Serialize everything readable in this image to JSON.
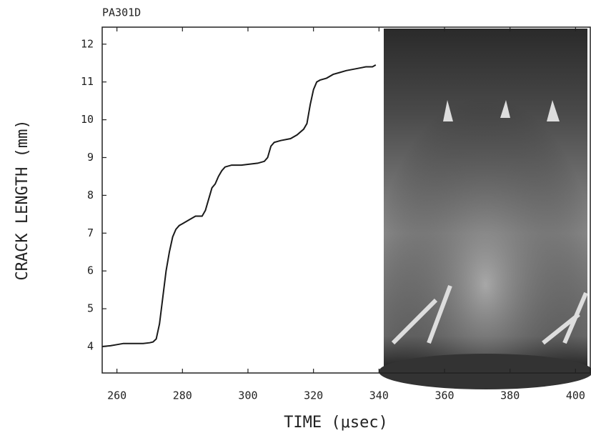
{
  "chart_data": {
    "type": "line",
    "title": "PA301D",
    "xlabel": "TIME (μsec)",
    "ylabel": "CRACK LENGTH (mm)",
    "x": [
      255.5,
      258,
      260,
      262,
      265,
      268,
      270,
      271,
      272,
      273,
      274,
      275,
      276,
      277,
      278,
      279,
      280,
      282,
      284,
      286,
      287,
      288,
      289,
      290,
      291,
      292,
      293,
      295,
      298,
      300,
      303,
      305,
      306,
      307,
      308,
      310,
      313,
      315,
      317,
      318,
      319,
      320,
      321,
      322,
      324,
      326,
      328,
      330,
      333,
      336,
      338,
      339
    ],
    "values": [
      4.0,
      4.02,
      4.05,
      4.08,
      4.08,
      4.08,
      4.1,
      4.12,
      4.2,
      4.6,
      5.3,
      6.0,
      6.5,
      6.9,
      7.1,
      7.2,
      7.25,
      7.35,
      7.45,
      7.45,
      7.6,
      7.9,
      8.2,
      8.3,
      8.5,
      8.65,
      8.75,
      8.8,
      8.8,
      8.82,
      8.85,
      8.9,
      9.0,
      9.3,
      9.4,
      9.45,
      9.5,
      9.6,
      9.75,
      9.9,
      10.4,
      10.8,
      11.0,
      11.05,
      11.1,
      11.2,
      11.25,
      11.3,
      11.35,
      11.4,
      11.4,
      11.45
    ],
    "color": "#1a1a1a",
    "xlim": [
      255.5,
      404.5
    ],
    "xticks": [
      260,
      280,
      300,
      320,
      340,
      360,
      380,
      400
    ],
    "ylim": [
      3.3,
      12.45
    ],
    "yticks": [
      4,
      5,
      6,
      7,
      8,
      9,
      10,
      11,
      12
    ],
    "grid": false
  }
}
